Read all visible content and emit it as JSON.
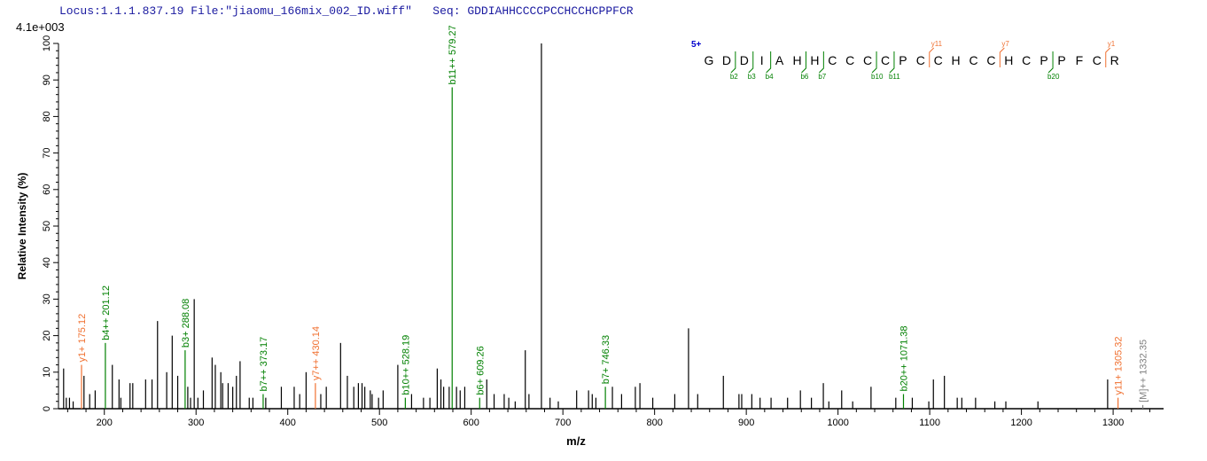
{
  "header": {
    "locus": "Locus:1.1.1.837.19",
    "file": "File:\"jiaomu_166mix_002_ID.wiff\"",
    "seq_label": "Seq:",
    "seq": "GDDIAHHCCCCPCCHCCHCPPFCR"
  },
  "colors": {
    "b_ion": "#008000",
    "y_ion": "#f07030",
    "precursor": "#808080",
    "peak": "#000000",
    "header": "#1a1aa0",
    "charge": "#0000cc"
  },
  "chart_data": {
    "type": "bar",
    "title": "",
    "scale_label": "4.1e+003",
    "xlabel": "m/z",
    "ylabel": "Relative   Intensity (%)",
    "xlim": [
      150,
      1355
    ],
    "ylim": [
      0,
      100
    ],
    "xticks": [
      200,
      300,
      400,
      500,
      600,
      700,
      800,
      900,
      1000,
      1100,
      1200,
      1300
    ],
    "yticks": [
      0,
      10,
      20,
      30,
      40,
      50,
      60,
      70,
      80,
      90,
      100
    ],
    "peaks": [
      [
        155.6,
        11
      ],
      [
        158.5,
        3
      ],
      [
        162,
        3
      ],
      [
        166,
        2
      ],
      [
        177.8,
        9
      ],
      [
        184,
        4
      ],
      [
        190,
        5
      ],
      [
        208.7,
        12
      ],
      [
        216,
        8
      ],
      [
        218,
        3
      ],
      [
        228,
        7
      ],
      [
        231,
        7
      ],
      [
        245,
        8
      ],
      [
        252,
        8
      ],
      [
        258,
        24
      ],
      [
        268,
        10
      ],
      [
        274,
        20
      ],
      [
        280,
        9
      ],
      [
        291,
        6
      ],
      [
        294,
        3
      ],
      [
        298,
        30
      ],
      [
        302,
        3
      ],
      [
        308,
        5
      ],
      [
        317.5,
        14
      ],
      [
        321,
        12
      ],
      [
        327,
        10
      ],
      [
        329,
        7
      ],
      [
        335,
        7
      ],
      [
        340,
        6
      ],
      [
        344,
        9
      ],
      [
        348,
        13
      ],
      [
        358,
        3
      ],
      [
        362,
        3
      ],
      [
        376,
        3
      ],
      [
        393,
        6
      ],
      [
        407,
        6
      ],
      [
        413,
        4
      ],
      [
        420,
        10
      ],
      [
        436,
        4
      ],
      [
        442,
        6
      ],
      [
        457.6,
        18
      ],
      [
        465,
        9
      ],
      [
        472,
        6
      ],
      [
        477,
        7
      ],
      [
        481,
        7
      ],
      [
        484,
        6
      ],
      [
        490,
        5
      ],
      [
        492,
        4
      ],
      [
        499,
        3
      ],
      [
        504,
        5
      ],
      [
        520,
        12
      ],
      [
        535,
        4
      ],
      [
        548,
        3
      ],
      [
        555,
        3
      ],
      [
        563,
        11
      ],
      [
        567,
        8
      ],
      [
        570,
        6
      ],
      [
        576,
        6
      ],
      [
        584,
        6
      ],
      [
        588,
        5
      ],
      [
        593,
        6
      ],
      [
        617,
        8
      ],
      [
        625,
        4
      ],
      [
        636,
        4
      ],
      [
        641,
        3
      ],
      [
        648,
        2
      ],
      [
        659,
        16
      ],
      [
        663,
        4
      ],
      [
        676.6,
        100
      ],
      [
        686,
        3
      ],
      [
        695,
        2
      ],
      [
        715,
        5
      ],
      [
        728,
        5
      ],
      [
        732,
        4
      ],
      [
        736,
        3
      ],
      [
        754,
        6
      ],
      [
        764,
        4
      ],
      [
        779,
        6
      ],
      [
        784,
        7
      ],
      [
        798,
        3
      ],
      [
        822,
        4
      ],
      [
        837,
        22
      ],
      [
        847,
        4
      ],
      [
        875,
        9
      ],
      [
        892,
        4
      ],
      [
        895,
        4
      ],
      [
        906,
        4
      ],
      [
        915,
        3
      ],
      [
        927,
        3
      ],
      [
        945,
        3
      ],
      [
        959,
        5
      ],
      [
        971,
        3
      ],
      [
        984,
        7
      ],
      [
        990,
        2
      ],
      [
        1004,
        5
      ],
      [
        1016,
        2
      ],
      [
        1036,
        6
      ],
      [
        1063,
        3
      ],
      [
        1081,
        3
      ],
      [
        1099,
        2
      ],
      [
        1104,
        8
      ],
      [
        1116,
        9
      ],
      [
        1130,
        3
      ],
      [
        1135,
        3
      ],
      [
        1150,
        3
      ],
      [
        1171,
        2
      ],
      [
        1183,
        2
      ],
      [
        1218,
        2
      ],
      [
        1294,
        8
      ]
    ],
    "annotated_peaks": [
      {
        "label": "y1+ 175.12",
        "mz": 175.12,
        "intensity": 12,
        "type": "y"
      },
      {
        "label": "b4++ 201.12",
        "mz": 201.12,
        "intensity": 18,
        "type": "b"
      },
      {
        "label": "b3+ 288.08",
        "mz": 288.08,
        "intensity": 16,
        "type": "b"
      },
      {
        "label": "b7++ 373.17",
        "mz": 373.17,
        "intensity": 4,
        "type": "b"
      },
      {
        "label": "y7++ 430.14",
        "mz": 430.14,
        "intensity": 7,
        "type": "y"
      },
      {
        "label": "b10++ 528.19",
        "mz": 528.19,
        "intensity": 3,
        "type": "b"
      },
      {
        "label": "b11++ 579.27",
        "mz": 579.27,
        "intensity": 88,
        "type": "b"
      },
      {
        "label": "b6+ 609.26",
        "mz": 609.26,
        "intensity": 3,
        "type": "b"
      },
      {
        "label": "b7+ 746.33",
        "mz": 746.33,
        "intensity": 6,
        "type": "b"
      },
      {
        "label": "b20++ 1071.38",
        "mz": 1071.38,
        "intensity": 4,
        "type": "b"
      },
      {
        "label": "y11+ 1305.32",
        "mz": 1305.32,
        "intensity": 3,
        "type": "y"
      },
      {
        "label": "[M]++ 1332.35",
        "mz": 1332.35,
        "intensity": 1,
        "type": "precursor"
      }
    ]
  },
  "sequence_map": {
    "charge": "5+",
    "residues": [
      "G",
      "D",
      "D",
      "I",
      "A",
      "H",
      "H",
      "C",
      "C",
      "C",
      "C",
      "P",
      "C",
      "C",
      "H",
      "C",
      "C",
      "H",
      "C",
      "P",
      "P",
      "F",
      "C",
      "R"
    ],
    "b_ions": [
      2,
      3,
      4,
      6,
      7,
      10,
      11,
      20
    ],
    "y_ions": [
      11,
      7,
      1
    ]
  }
}
